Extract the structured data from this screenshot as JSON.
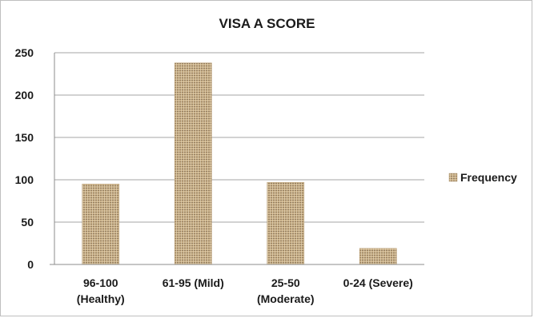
{
  "chart_data": {
    "type": "bar",
    "title": "VISA A SCORE",
    "categories": [
      [
        "96-100",
        "(Healthy)"
      ],
      [
        "61-95 (Mild)"
      ],
      [
        "25-50",
        "(Moderate)"
      ],
      [
        "0-24 (Severe)"
      ]
    ],
    "series": [
      {
        "name": "Frequency",
        "values": [
          95,
          238,
          97,
          19
        ]
      }
    ],
    "ylim": [
      0,
      250
    ],
    "yticks": [
      0,
      50,
      100,
      150,
      200,
      250
    ],
    "grid": true,
    "legend": "right",
    "bar_color": "#c9b088",
    "bar_pattern_color": "#7a6448"
  }
}
